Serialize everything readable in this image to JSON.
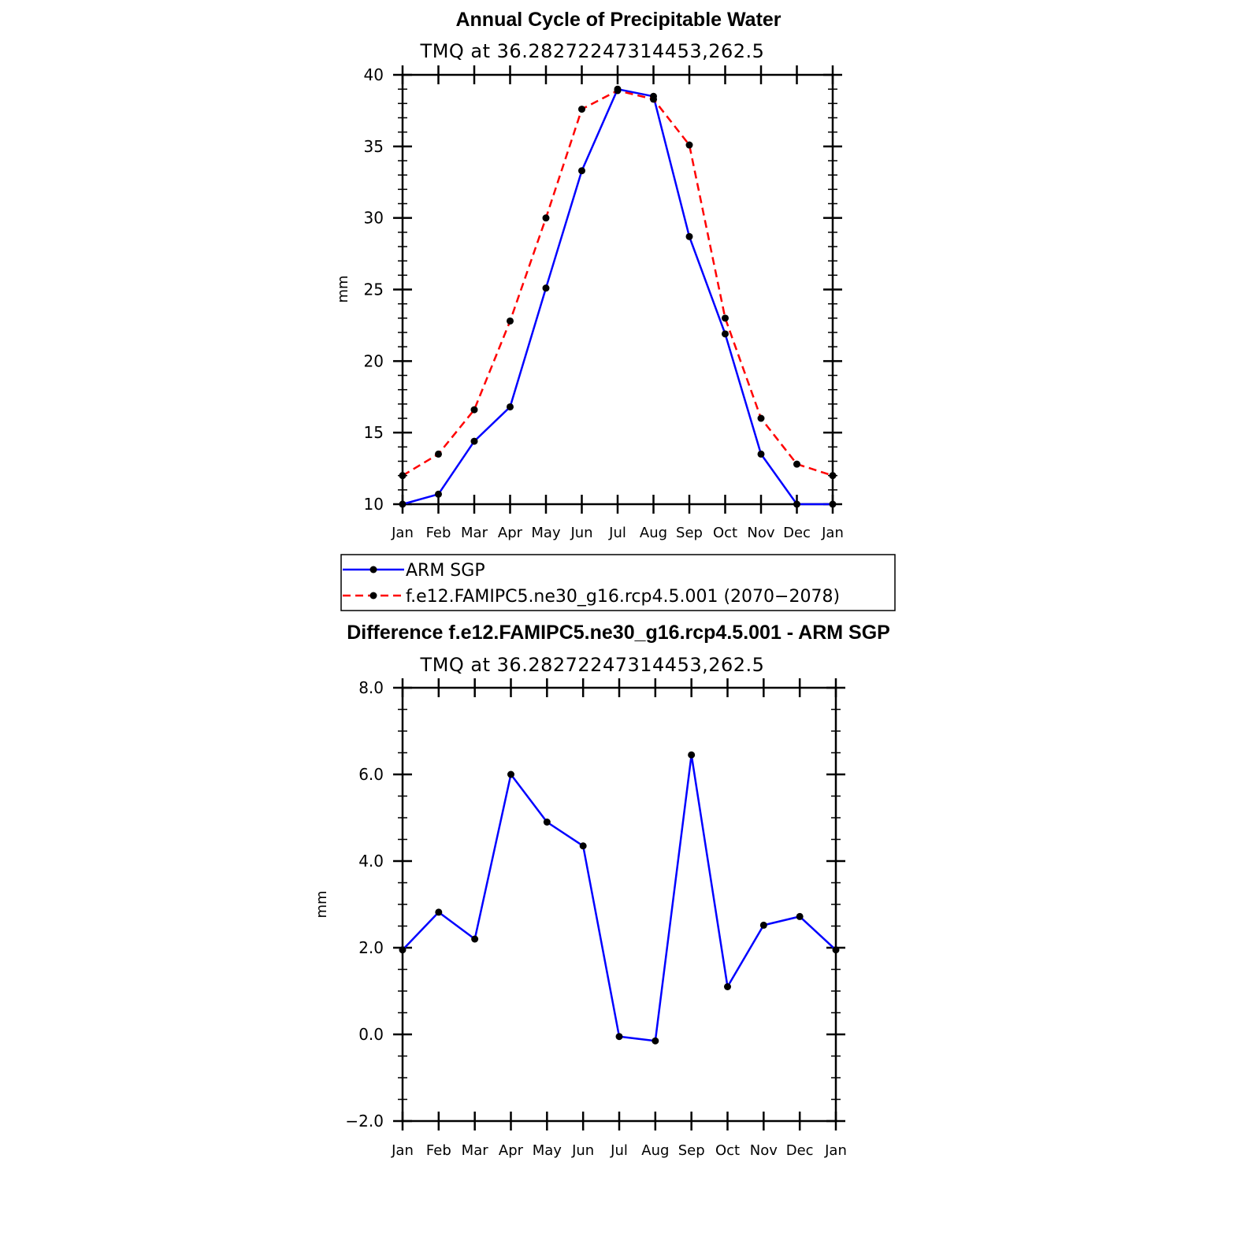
{
  "chart_data": [
    {
      "type": "line",
      "title": "Annual Cycle of Precipitable Water",
      "subtitle": "TMQ  at  36.28272247314453,262.5",
      "xlabel": "",
      "ylabel": "mm",
      "categories": [
        "Jan",
        "Feb",
        "Mar",
        "Apr",
        "May",
        "Jun",
        "Jul",
        "Aug",
        "Sep",
        "Oct",
        "Nov",
        "Dec",
        "Jan"
      ],
      "ylim": [
        10,
        40
      ],
      "yticks": [
        10,
        15,
        20,
        25,
        30,
        35,
        40
      ],
      "ytick_labels": [
        "10",
        "15",
        "20",
        "25",
        "30",
        "35",
        "40"
      ],
      "series": [
        {
          "name": "ARM  SGP",
          "color": "#0000ff",
          "dashed": false,
          "values": [
            10.0,
            10.7,
            14.4,
            16.8,
            25.1,
            33.3,
            39.0,
            38.5,
            28.7,
            21.9,
            13.5,
            10.0,
            10.0
          ]
        },
        {
          "name": "f.e12.FAMIPC5.ne30_g16.rcp4.5.001  (2070−2078)",
          "color": "#ff0000",
          "dashed": true,
          "values": [
            12.0,
            13.5,
            16.6,
            22.8,
            30.0,
            37.6,
            38.9,
            38.3,
            35.1,
            23.0,
            16.0,
            12.8,
            12.0
          ]
        }
      ],
      "legend": "below"
    },
    {
      "type": "line",
      "title": "Difference f.e12.FAMIPC5.ne30_g16.rcp4.5.001 - ARM SGP",
      "subtitle": "TMQ  at  36.28272247314453,262.5",
      "xlabel": "",
      "ylabel": "mm",
      "categories": [
        "Jan",
        "Feb",
        "Mar",
        "Apr",
        "May",
        "Jun",
        "Jul",
        "Aug",
        "Sep",
        "Oct",
        "Nov",
        "Dec",
        "Jan"
      ],
      "ylim": [
        -2.0,
        8.0
      ],
      "yticks": [
        -2.0,
        0.0,
        2.0,
        4.0,
        6.0,
        8.0
      ],
      "ytick_labels": [
        "−2.0",
        "0.0",
        "2.0",
        "4.0",
        "6.0",
        "8.0"
      ],
      "series": [
        {
          "name": "Difference",
          "color": "#0000ff",
          "dashed": false,
          "values": [
            1.95,
            2.82,
            2.2,
            6.0,
            4.9,
            4.35,
            -0.05,
            -0.15,
            6.45,
            1.1,
            2.52,
            2.72,
            1.95
          ]
        }
      ]
    }
  ]
}
